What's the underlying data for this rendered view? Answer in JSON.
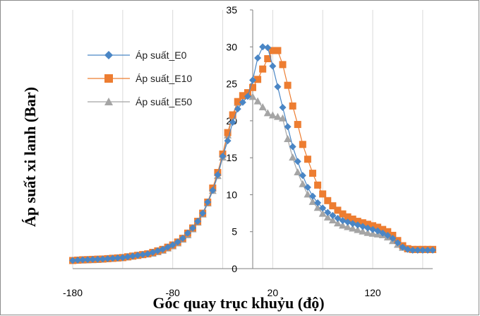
{
  "chart_data": {
    "type": "line",
    "title": "",
    "xlabel": "Góc quay trục khuỷu (độ)",
    "ylabel": "Áp suất xi lanh (Bar)",
    "xlim": [
      -180,
      180
    ],
    "ylim": [
      0,
      35
    ],
    "xticks": [
      "-180",
      "-80",
      "20",
      "120"
    ],
    "yticks": [
      "0",
      "5",
      "10",
      "15",
      "20",
      "25",
      "30",
      "35"
    ],
    "grid": "vertical gridlines",
    "legend_position": "top-left",
    "series": [
      {
        "name": "Áp suất_E0",
        "marker": "diamond",
        "color": "#4a86c5",
        "x": [
          -180,
          -175,
          -170,
          -165,
          -160,
          -155,
          -150,
          -145,
          -140,
          -135,
          -130,
          -125,
          -120,
          -115,
          -110,
          -105,
          -100,
          -95,
          -90,
          -85,
          -80,
          -75,
          -70,
          -65,
          -60,
          -55,
          -50,
          -45,
          -40,
          -35,
          -30,
          -25,
          -20,
          -15,
          -10,
          -5,
          0,
          5,
          10,
          15,
          20,
          25,
          30,
          35,
          40,
          45,
          50,
          55,
          60,
          65,
          70,
          75,
          80,
          85,
          90,
          95,
          100,
          105,
          110,
          115,
          120,
          125,
          130,
          135,
          140,
          145,
          150,
          155,
          160,
          165,
          170,
          175,
          180
        ],
        "y": [
          1.1,
          1.15,
          1.2,
          1.22,
          1.25,
          1.28,
          1.3,
          1.35,
          1.4,
          1.45,
          1.5,
          1.6,
          1.7,
          1.8,
          1.9,
          2.0,
          2.2,
          2.4,
          2.6,
          2.9,
          3.2,
          3.6,
          4.1,
          4.8,
          5.5,
          6.4,
          7.5,
          9.0,
          10.6,
          12.7,
          15.2,
          17.3,
          19.8,
          21.6,
          22.5,
          23.3,
          25.5,
          28.5,
          30.0,
          29.9,
          27.4,
          24.6,
          21.8,
          19.2,
          16.5,
          14.5,
          12.6,
          11.0,
          9.8,
          8.9,
          8.2,
          7.6,
          7.2,
          6.8,
          6.5,
          6.3,
          6.1,
          5.9,
          5.7,
          5.5,
          5.3,
          5.1,
          4.8,
          4.5,
          4.1,
          3.5,
          2.9,
          2.6,
          2.5,
          2.5,
          2.5,
          2.5,
          2.5
        ]
      },
      {
        "name": "Áp suất_E10",
        "marker": "square",
        "color": "#ed7d31",
        "x": [
          -180,
          -175,
          -170,
          -165,
          -160,
          -155,
          -150,
          -145,
          -140,
          -135,
          -130,
          -125,
          -120,
          -115,
          -110,
          -105,
          -100,
          -95,
          -90,
          -85,
          -80,
          -75,
          -70,
          -65,
          -60,
          -55,
          -50,
          -45,
          -40,
          -35,
          -30,
          -25,
          -20,
          -15,
          -10,
          -5,
          0,
          5,
          10,
          15,
          20,
          25,
          30,
          35,
          40,
          45,
          50,
          55,
          60,
          65,
          70,
          75,
          80,
          85,
          90,
          95,
          100,
          105,
          110,
          115,
          120,
          125,
          130,
          135,
          140,
          145,
          150,
          155,
          160,
          165,
          170,
          175,
          180
        ],
        "y": [
          1.1,
          1.15,
          1.2,
          1.22,
          1.25,
          1.28,
          1.3,
          1.35,
          1.4,
          1.45,
          1.5,
          1.6,
          1.7,
          1.8,
          1.9,
          2.0,
          2.2,
          2.4,
          2.6,
          2.9,
          3.2,
          3.6,
          4.1,
          4.8,
          5.5,
          6.4,
          7.5,
          9.0,
          10.9,
          13.0,
          15.5,
          18.4,
          20.8,
          22.6,
          23.4,
          23.8,
          24.5,
          25.6,
          27.0,
          28.4,
          29.5,
          29.5,
          27.6,
          24.8,
          22.0,
          19.5,
          16.8,
          14.8,
          12.9,
          11.3,
          10.1,
          9.2,
          8.5,
          7.9,
          7.4,
          7.0,
          6.7,
          6.4,
          6.2,
          6.0,
          5.8,
          5.6,
          5.3,
          5.0,
          4.5,
          3.8,
          3.1,
          2.7,
          2.6,
          2.6,
          2.6,
          2.6,
          2.6
        ]
      },
      {
        "name": "Áp suất_E50",
        "marker": "triangle",
        "color": "#a5a5a5",
        "x": [
          -180,
          -175,
          -170,
          -165,
          -160,
          -155,
          -150,
          -145,
          -140,
          -135,
          -130,
          -125,
          -120,
          -115,
          -110,
          -105,
          -100,
          -95,
          -90,
          -85,
          -80,
          -75,
          -70,
          -65,
          -60,
          -55,
          -50,
          -45,
          -40,
          -35,
          -30,
          -25,
          -20,
          -15,
          -10,
          -5,
          0,
          5,
          10,
          15,
          20,
          25,
          30,
          35,
          40,
          45,
          50,
          55,
          60,
          65,
          70,
          75,
          80,
          85,
          90,
          95,
          100,
          105,
          110,
          115,
          120,
          125,
          130,
          135,
          140,
          145,
          150,
          155,
          160,
          165,
          170,
          175,
          180
        ],
        "y": [
          1.0,
          1.05,
          1.08,
          1.1,
          1.12,
          1.15,
          1.2,
          1.25,
          1.3,
          1.35,
          1.4,
          1.5,
          1.6,
          1.7,
          1.8,
          1.9,
          2.0,
          2.2,
          2.4,
          2.7,
          3.0,
          3.4,
          3.9,
          4.5,
          5.3,
          6.2,
          7.3,
          8.8,
          10.5,
          12.5,
          15.0,
          18.0,
          20.6,
          22.4,
          23.3,
          23.6,
          23.2,
          22.6,
          21.8,
          21.0,
          20.7,
          20.5,
          20.3,
          17.5,
          15.0,
          13.0,
          11.4,
          10.0,
          9.0,
          8.2,
          7.4,
          6.9,
          6.5,
          6.1,
          5.8,
          5.6,
          5.4,
          5.2,
          5.0,
          4.8,
          4.7,
          4.6,
          4.5,
          4.2,
          3.7,
          3.2,
          2.8,
          2.6,
          2.5,
          2.5,
          2.5,
          2.5,
          2.5
        ]
      }
    ]
  }
}
